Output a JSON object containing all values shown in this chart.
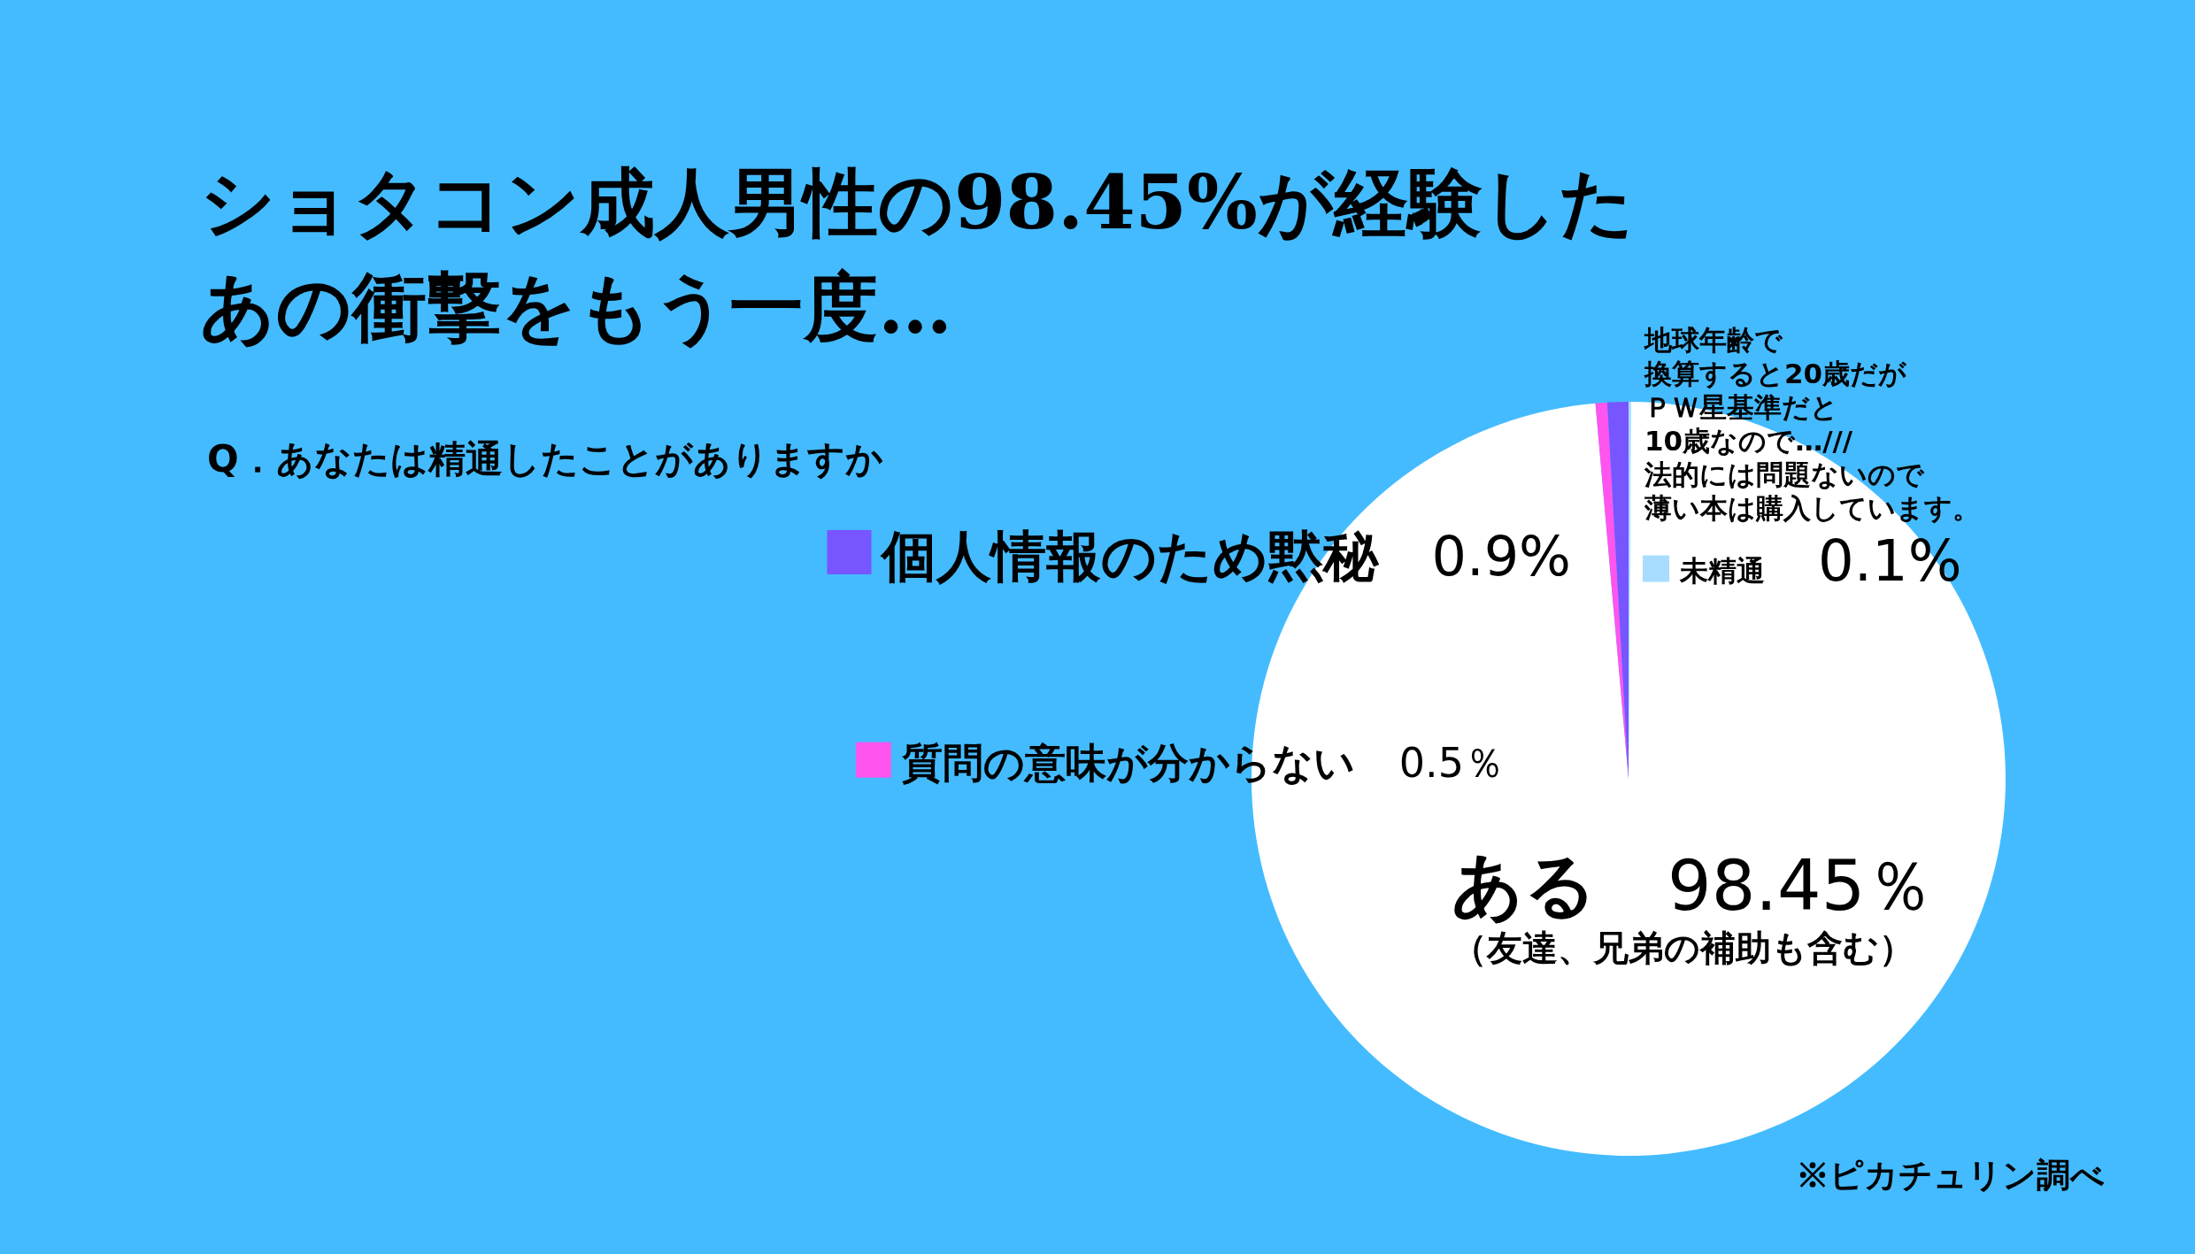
{
  "chart_data": {
    "type": "pie",
    "title": "ショタコン成人男性の98.45%が経験したあの衝撃をもう一度…",
    "subtitle": "Q．あなたは精通したことがありますか",
    "categories": [
      "未精通",
      "ある",
      "質問の意味が分からない",
      "個人情報のため黙秘"
    ],
    "values": [
      0.1,
      98.45,
      0.5,
      0.9
    ],
    "value_labels": [
      "0.1%",
      "98.45％",
      "0.5％",
      "0.9%"
    ],
    "colors": [
      "#a8ddff",
      "#ffffff",
      "#ff55ee",
      "#7755ff"
    ],
    "legend": "left",
    "annotations": [
      "地球年齢で換算すると20歳だがＰＷ星基準だと10歳なので…///法的には問題ないので薄い本は購入しています。",
      "（友達、兄弟の補助も含む）",
      "※ピカチュリン調べ"
    ]
  }
}
